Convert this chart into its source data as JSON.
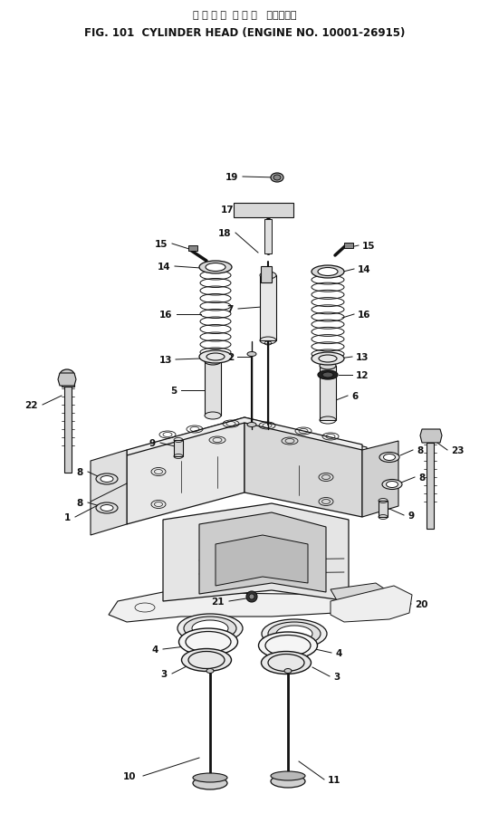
{
  "title_jp": "シ リ ン ダ  ヘ ッ ド   適用号機．",
  "title_en": "FIG. 101  CYLINDER HEAD (ENGINE NO. 10001-26915)",
  "bg_color": "#ffffff",
  "lc": "#111111",
  "figsize": [
    5.4,
    9.2
  ],
  "dpi": 100
}
